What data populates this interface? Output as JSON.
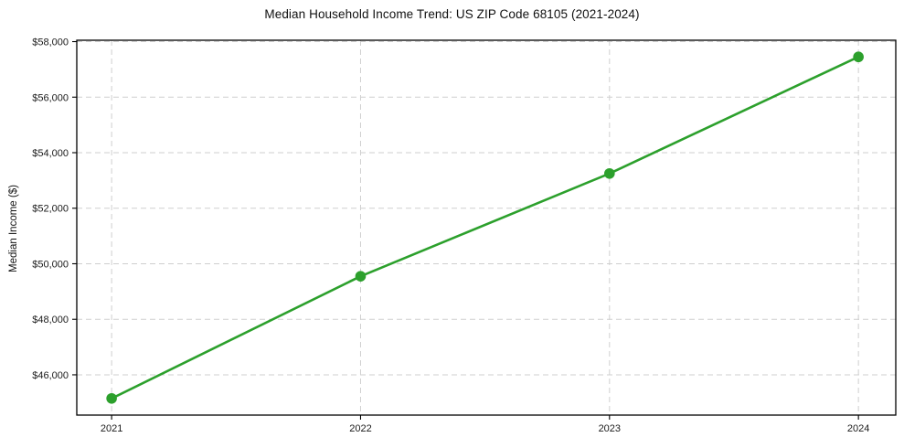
{
  "chart_data": {
    "type": "line",
    "title": "Median Household Income Trend: US ZIP Code 68105 (2021-2024)",
    "xlabel": "",
    "ylabel": "Median Income ($)",
    "x": [
      2021,
      2022,
      2023,
      2024
    ],
    "x_tick_labels": [
      "2021",
      "2022",
      "2023",
      "2024"
    ],
    "series": [
      {
        "name": "Median Household Income",
        "values": [
          45150,
          49550,
          53250,
          57450
        ]
      }
    ],
    "y_ticks": [
      46000,
      48000,
      50000,
      52000,
      54000,
      56000,
      58000
    ],
    "y_tick_labels": [
      "$46,000",
      "$48,000",
      "$50,000",
      "$52,000",
      "$54,000",
      "$56,000",
      "$58,000"
    ],
    "xlim": [
      2020.86,
      2024.15
    ],
    "ylim": [
      44550,
      58050
    ],
    "grid": true,
    "grid_style": "dashed",
    "legend_position": "none",
    "marker": "circle",
    "colors": {
      "line": "#2ca02c",
      "marker": "#2ca02c",
      "grid": "#cfcfcf",
      "spine": "#000000",
      "text": "#1a1a1a",
      "background": "#ffffff"
    }
  }
}
